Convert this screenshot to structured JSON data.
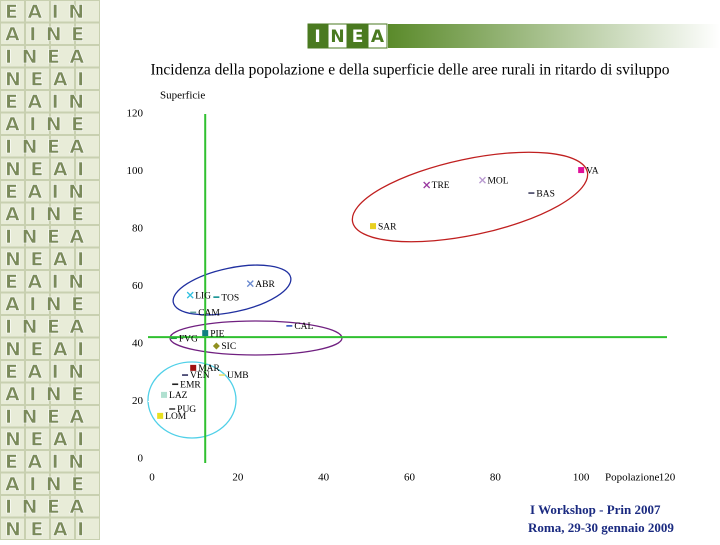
{
  "logo": {
    "letters": [
      "I",
      "N",
      "E",
      "A"
    ]
  },
  "sidebar": {
    "rows": [
      "EAIN",
      "AINE",
      "INEA",
      "NEAI",
      "EAIN",
      "AINE",
      "INEA",
      "NEAI",
      "EAIN",
      "AINE",
      "INEA",
      "NEAI",
      "EAIN",
      "AINE",
      "INEA",
      "NEAI",
      "EAIN",
      "AINE",
      "INEA",
      "NEAI",
      "EAIN",
      "AINE",
      "INEA",
      "NEAI"
    ]
  },
  "footer": {
    "line1": "I  Workshop - Prin 2007",
    "line2": "Roma, 29-30 gennaio 2009"
  },
  "chart_data": {
    "type": "scatter",
    "title": "Incidenza della popolazione e della superficie delle aree rurali in ritardo di sviluppo",
    "x_label": "Popolazione",
    "y_label": "Superficie",
    "labels": [
      "VA",
      "MOL",
      "TRE",
      "BAS",
      "SAR",
      "ABR",
      "LIG",
      "TOS",
      "CAM",
      "CAL",
      "FVG",
      "PIE",
      "SIC",
      "MAR",
      "VEN",
      "UMB",
      "EMR",
      "LAZ",
      "PUG",
      "LOM"
    ],
    "x": [
      100,
      77,
      64,
      88.4,
      51.5,
      22.9,
      8.9,
      15,
      9.6,
      32,
      5.1,
      12.4,
      15,
      9.6,
      7.7,
      16.3,
      5.4,
      2.8,
      4.7,
      1.9
    ],
    "y": [
      100.5,
      97,
      95.3,
      92.5,
      81,
      61,
      57,
      56.3,
      51,
      46.3,
      42,
      43.8,
      39.3,
      31.7,
      29.2,
      29.2,
      26,
      22.3,
      17.4,
      15
    ],
    "colors": [
      "#e0109a",
      "#b89ad0",
      "#9a3aa0",
      "#404060",
      "#e8d020",
      "#6a8ad0",
      "#30c0e0",
      "#109090",
      "#60a0a0",
      "#3050c0",
      "#20a040",
      "#108080",
      "#909020",
      "#a01010",
      "#303060",
      "#e8e070",
      "#202020",
      "#b0e0d0",
      "#404040",
      "#e8e020"
    ],
    "markers": [
      "square",
      "x",
      "x",
      "dash",
      "square",
      "x",
      "x",
      "dash",
      "dash",
      "dash",
      "dash",
      "square",
      "diamond",
      "square",
      "dash",
      "dash",
      "dash",
      "square",
      "dash",
      "square"
    ],
    "xlim": [
      0,
      120
    ],
    "ylim": [
      0,
      120
    ],
    "xticks": [
      0,
      20,
      40,
      60,
      80,
      100,
      120
    ],
    "yticks": [
      0,
      20,
      40,
      60,
      80,
      100,
      120
    ],
    "reference_lines": {
      "x": 12.4,
      "y": 42.4,
      "color": "#30c030"
    }
  }
}
